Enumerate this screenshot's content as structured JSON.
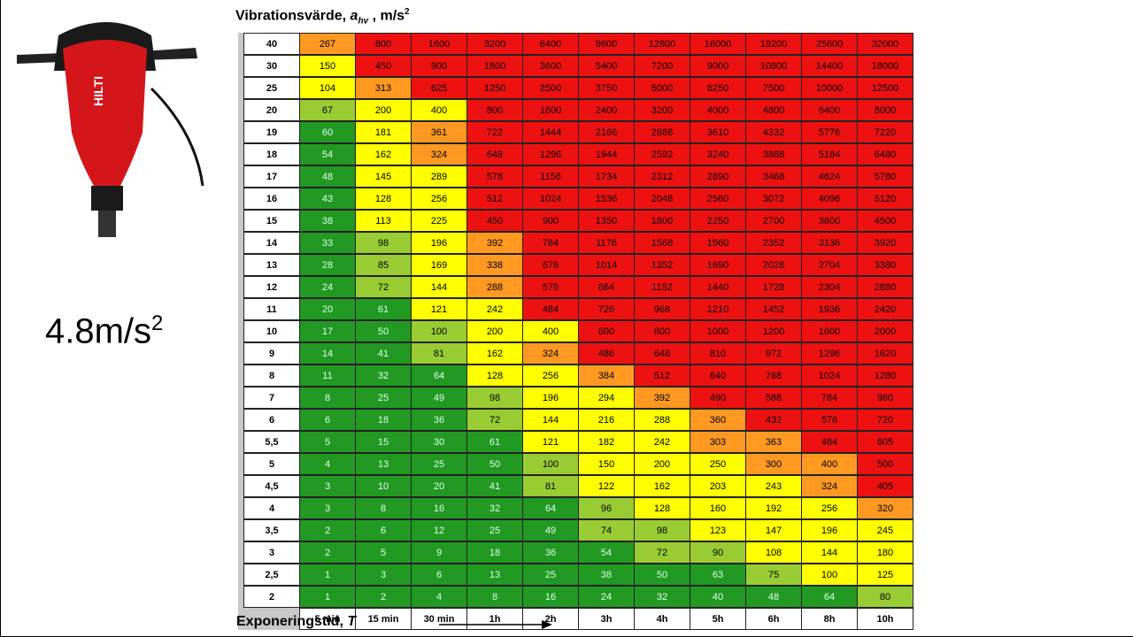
{
  "title": {
    "text": "Vibrationsvärde,",
    "symbol": "a",
    "subscript": "hv",
    "unit": ", m/s",
    "superscript": "2"
  },
  "tool_value": {
    "text": "4.8m/s",
    "superscript": "2"
  },
  "axis_label": {
    "text": "Exponeringstid,",
    "symbol": "T"
  },
  "table": {
    "columns": [
      "5 min",
      "15 min",
      "30 min",
      "1h",
      "2h",
      "3h",
      "4h",
      "5h",
      "6h",
      "8h",
      "10h"
    ],
    "row_labels": [
      "40",
      "30",
      "25",
      "20",
      "19",
      "18",
      "17",
      "16",
      "15",
      "14",
      "13",
      "12",
      "11",
      "10",
      "9",
      "8",
      "7",
      "6",
      "5,5",
      "5",
      "4,5",
      "4",
      "3,5",
      "3",
      "2,5",
      "2"
    ],
    "rows": [
      [
        267,
        800,
        1600,
        3200,
        6400,
        9600,
        12800,
        16000,
        19200,
        25600,
        32000
      ],
      [
        150,
        450,
        900,
        1800,
        3600,
        5400,
        7200,
        9000,
        10800,
        14400,
        18000
      ],
      [
        104,
        313,
        625,
        1250,
        2500,
        3750,
        5000,
        6250,
        7500,
        10000,
        12500
      ],
      [
        67,
        200,
        400,
        800,
        1600,
        2400,
        3200,
        4000,
        4800,
        6400,
        8000
      ],
      [
        60,
        181,
        361,
        722,
        1444,
        2166,
        2888,
        3610,
        4332,
        5776,
        7220
      ],
      [
        54,
        162,
        324,
        648,
        1296,
        1944,
        2592,
        3240,
        3888,
        5184,
        6480
      ],
      [
        48,
        145,
        289,
        578,
        1156,
        1734,
        2312,
        2890,
        3468,
        4624,
        5780
      ],
      [
        43,
        128,
        256,
        512,
        1024,
        1536,
        2048,
        2560,
        3072,
        4096,
        5120
      ],
      [
        38,
        113,
        225,
        450,
        900,
        1350,
        1800,
        2250,
        2700,
        3600,
        4500
      ],
      [
        33,
        98,
        196,
        392,
        784,
        1176,
        1568,
        1960,
        2352,
        3136,
        3920
      ],
      [
        28,
        85,
        169,
        338,
        676,
        1014,
        1352,
        1690,
        2028,
        2704,
        3380
      ],
      [
        24,
        72,
        144,
        288,
        576,
        864,
        1152,
        1440,
        1728,
        2304,
        2880
      ],
      [
        20,
        61,
        121,
        242,
        484,
        726,
        968,
        1210,
        1452,
        1936,
        2420
      ],
      [
        17,
        50,
        100,
        200,
        400,
        600,
        800,
        1000,
        1200,
        1600,
        2000
      ],
      [
        14,
        41,
        81,
        162,
        324,
        486,
        648,
        810,
        972,
        1296,
        1620
      ],
      [
        11,
        32,
        64,
        128,
        256,
        384,
        512,
        640,
        768,
        1024,
        1280
      ],
      [
        8,
        25,
        49,
        98,
        196,
        294,
        392,
        490,
        588,
        784,
        980
      ],
      [
        6,
        18,
        36,
        72,
        144,
        216,
        288,
        360,
        432,
        576,
        720
      ],
      [
        5,
        15,
        30,
        61,
        121,
        182,
        242,
        303,
        363,
        484,
        605
      ],
      [
        4,
        13,
        25,
        50,
        100,
        150,
        200,
        250,
        300,
        400,
        500
      ],
      [
        3,
        10,
        20,
        41,
        81,
        122,
        162,
        203,
        243,
        324,
        405
      ],
      [
        3,
        8,
        16,
        32,
        64,
        96,
        128,
        160,
        192,
        256,
        320
      ],
      [
        2,
        6,
        12,
        25,
        49,
        74,
        98,
        123,
        147,
        196,
        245
      ],
      [
        2,
        5,
        9,
        18,
        36,
        54,
        72,
        90,
        108,
        144,
        180
      ],
      [
        1,
        3,
        6,
        13,
        25,
        38,
        50,
        63,
        75,
        100,
        125
      ],
      [
        1,
        2,
        4,
        8,
        16,
        24,
        32,
        40,
        48,
        64,
        80
      ]
    ],
    "colors": [
      [
        "#f92",
        "#e11",
        "#e11",
        "#e11",
        "#e11",
        "#e11",
        "#e11",
        "#e11",
        "#e11",
        "#e11",
        "#e11"
      ],
      [
        "#ff0",
        "#e11",
        "#e11",
        "#e11",
        "#e11",
        "#e11",
        "#e11",
        "#e11",
        "#e11",
        "#e11",
        "#e11"
      ],
      [
        "#ff0",
        "#f92",
        "#e11",
        "#e11",
        "#e11",
        "#e11",
        "#e11",
        "#e11",
        "#e11",
        "#e11",
        "#e11"
      ],
      [
        "#9c3",
        "#ff0",
        "#ff0",
        "#e11",
        "#e11",
        "#e11",
        "#e11",
        "#e11",
        "#e11",
        "#e11",
        "#e11"
      ],
      [
        "#292",
        "#ff0",
        "#f92",
        "#e11",
        "#e11",
        "#e11",
        "#e11",
        "#e11",
        "#e11",
        "#e11",
        "#e11"
      ],
      [
        "#292",
        "#ff0",
        "#f92",
        "#e11",
        "#e11",
        "#e11",
        "#e11",
        "#e11",
        "#e11",
        "#e11",
        "#e11"
      ],
      [
        "#292",
        "#ff0",
        "#ff0",
        "#e11",
        "#e11",
        "#e11",
        "#e11",
        "#e11",
        "#e11",
        "#e11",
        "#e11"
      ],
      [
        "#292",
        "#ff0",
        "#ff0",
        "#e11",
        "#e11",
        "#e11",
        "#e11",
        "#e11",
        "#e11",
        "#e11",
        "#e11"
      ],
      [
        "#292",
        "#ff0",
        "#ff0",
        "#e11",
        "#e11",
        "#e11",
        "#e11",
        "#e11",
        "#e11",
        "#e11",
        "#e11"
      ],
      [
        "#292",
        "#9c3",
        "#ff0",
        "#f92",
        "#e11",
        "#e11",
        "#e11",
        "#e11",
        "#e11",
        "#e11",
        "#e11"
      ],
      [
        "#292",
        "#9c3",
        "#ff0",
        "#f92",
        "#e11",
        "#e11",
        "#e11",
        "#e11",
        "#e11",
        "#e11",
        "#e11"
      ],
      [
        "#292",
        "#9c3",
        "#ff0",
        "#f92",
        "#e11",
        "#e11",
        "#e11",
        "#e11",
        "#e11",
        "#e11",
        "#e11"
      ],
      [
        "#292",
        "#292",
        "#ff0",
        "#ff0",
        "#e11",
        "#e11",
        "#e11",
        "#e11",
        "#e11",
        "#e11",
        "#e11"
      ],
      [
        "#292",
        "#292",
        "#9c3",
        "#ff0",
        "#ff0",
        "#e11",
        "#e11",
        "#e11",
        "#e11",
        "#e11",
        "#e11"
      ],
      [
        "#292",
        "#292",
        "#9c3",
        "#ff0",
        "#f92",
        "#e11",
        "#e11",
        "#e11",
        "#e11",
        "#e11",
        "#e11"
      ],
      [
        "#292",
        "#292",
        "#292",
        "#ff0",
        "#ff0",
        "#f92",
        "#e11",
        "#e11",
        "#e11",
        "#e11",
        "#e11"
      ],
      [
        "#292",
        "#292",
        "#292",
        "#9c3",
        "#ff0",
        "#ff0",
        "#f92",
        "#e11",
        "#e11",
        "#e11",
        "#e11"
      ],
      [
        "#292",
        "#292",
        "#292",
        "#9c3",
        "#ff0",
        "#ff0",
        "#ff0",
        "#f92",
        "#e11",
        "#e11",
        "#e11"
      ],
      [
        "#292",
        "#292",
        "#292",
        "#292",
        "#ff0",
        "#ff0",
        "#ff0",
        "#f92",
        "#f92",
        "#e11",
        "#e11"
      ],
      [
        "#292",
        "#292",
        "#292",
        "#292",
        "#9c3",
        "#ff0",
        "#ff0",
        "#ff0",
        "#f92",
        "#f92",
        "#e11"
      ],
      [
        "#292",
        "#292",
        "#292",
        "#292",
        "#9c3",
        "#ff0",
        "#ff0",
        "#ff0",
        "#ff0",
        "#f92",
        "#e11"
      ],
      [
        "#292",
        "#292",
        "#292",
        "#292",
        "#292",
        "#9c3",
        "#ff0",
        "#ff0",
        "#ff0",
        "#ff0",
        "#f92"
      ],
      [
        "#292",
        "#292",
        "#292",
        "#292",
        "#292",
        "#9c3",
        "#9c3",
        "#ff0",
        "#ff0",
        "#ff0",
        "#ff0"
      ],
      [
        "#292",
        "#292",
        "#292",
        "#292",
        "#292",
        "#292",
        "#9c3",
        "#9c3",
        "#ff0",
        "#ff0",
        "#ff0"
      ],
      [
        "#292",
        "#292",
        "#292",
        "#292",
        "#292",
        "#292",
        "#292",
        "#292",
        "#9c3",
        "#ff0",
        "#ff0"
      ],
      [
        "#292",
        "#292",
        "#292",
        "#292",
        "#292",
        "#292",
        "#292",
        "#292",
        "#292",
        "#292",
        "#9c3"
      ]
    ]
  }
}
